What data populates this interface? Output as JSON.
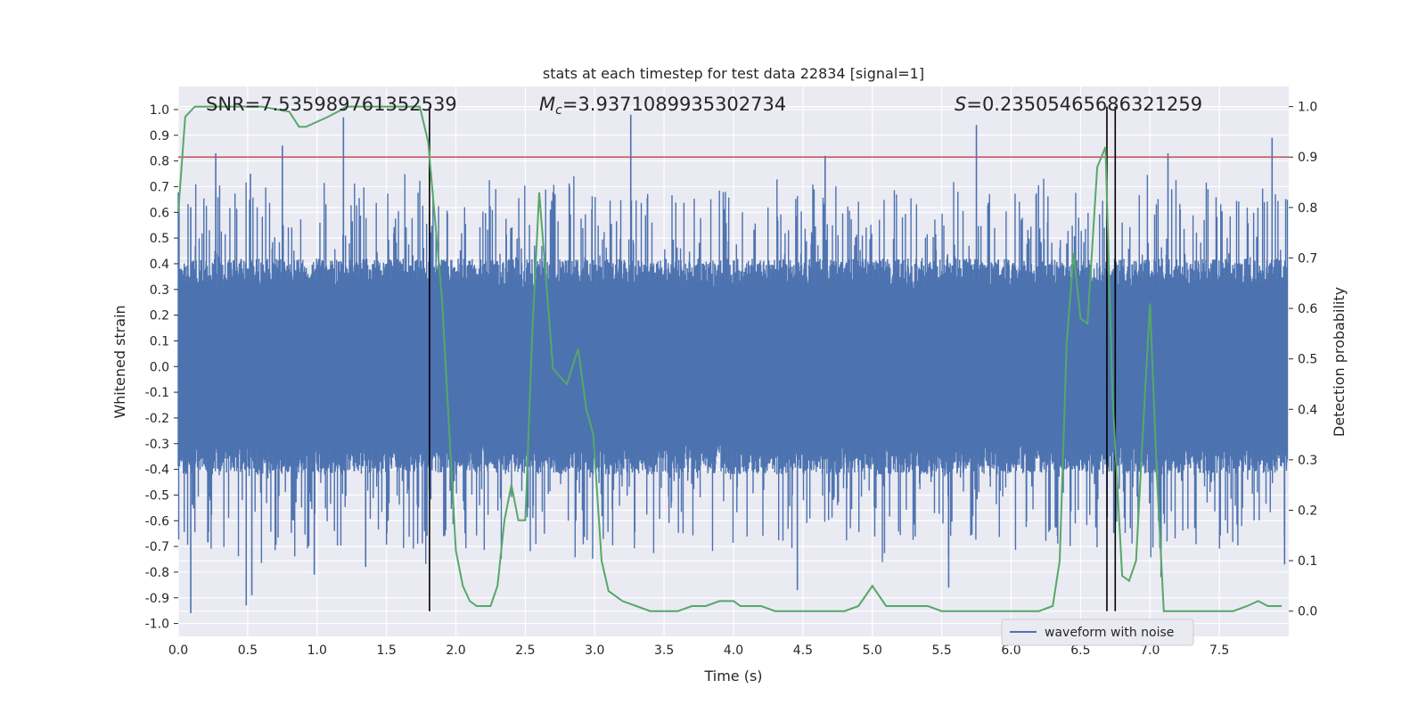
{
  "chart_data": {
    "type": "line",
    "title": "stats at each timestep for test data 22834 [signal=1]",
    "xlabel": "Time (s)",
    "ylabel_left": "Whitened strain",
    "ylabel_right": "Detection probability",
    "xlim": [
      0.0,
      8.0
    ],
    "ylim_left": [
      -1.05,
      1.09
    ],
    "ylim_right": [
      -0.05,
      1.04
    ],
    "x_ticks": [
      "0.0",
      "0.5",
      "1.0",
      "1.5",
      "2.0",
      "2.5",
      "3.0",
      "3.5",
      "4.0",
      "4.5",
      "5.0",
      "5.5",
      "6.0",
      "6.5",
      "7.0",
      "7.5"
    ],
    "y_ticks_left": [
      "1.0",
      "0.9",
      "0.8",
      "0.7",
      "0.6",
      "0.5",
      "0.4",
      "0.3",
      "0.2",
      "0.1",
      "0.0",
      "-0.1",
      "-0.2",
      "-0.3",
      "-0.4",
      "-0.5",
      "-0.6",
      "-0.7",
      "-0.8",
      "-0.9",
      "-1.0"
    ],
    "y_ticks_right": [
      "1.0",
      "0.9",
      "0.8",
      "0.7",
      "0.6",
      "0.5",
      "0.4",
      "0.3",
      "0.2",
      "0.1",
      "0.0"
    ],
    "grid": true,
    "legend_position": "bottom-right",
    "annotations": {
      "snr": "SNR=7.535989761352539",
      "mc_symbol": "M",
      "mc_sub": "c",
      "mc_value": "=3.9371089935302734",
      "s_symbol": "S",
      "s_value": "=0.23505465686321259"
    },
    "threshold_right": 0.9,
    "vertical_lines_x": [
      1.81,
      6.69,
      6.75
    ],
    "series": [
      {
        "name": "waveform with noise",
        "color": "#4c72b0",
        "style": "dense noise, amplitude mostly within ±0.4 with spikes up to ±1.0",
        "spike_peaks": [
          {
            "x": 0.09,
            "y": 0.62
          },
          {
            "x": 0.27,
            "y": 0.83
          },
          {
            "x": 0.52,
            "y": 0.75
          },
          {
            "x": 0.75,
            "y": 0.86
          },
          {
            "x": 1.19,
            "y": 0.97
          },
          {
            "x": 3.26,
            "y": 0.98
          },
          {
            "x": 4.66,
            "y": 0.82
          },
          {
            "x": 5.75,
            "y": 0.94
          },
          {
            "x": 7.13,
            "y": 0.83
          },
          {
            "x": 7.88,
            "y": 0.89
          }
        ],
        "spike_troughs": [
          {
            "x": 0.09,
            "y": -0.96
          },
          {
            "x": 0.49,
            "y": -0.93
          },
          {
            "x": 0.53,
            "y": -0.89
          },
          {
            "x": 0.98,
            "y": -0.81
          },
          {
            "x": 1.35,
            "y": -0.78
          },
          {
            "x": 4.46,
            "y": -0.87
          },
          {
            "x": 5.55,
            "y": -0.86
          },
          {
            "x": 7.08,
            "y": -0.82
          },
          {
            "x": 7.97,
            "y": -0.77
          }
        ]
      },
      {
        "name": "",
        "color": "#55a868",
        "axis": "right",
        "x": [
          0.0,
          0.05,
          0.12,
          0.2,
          0.4,
          0.6,
          0.8,
          0.87,
          0.92,
          1.0,
          1.08,
          1.15,
          1.21,
          1.27,
          1.3,
          1.4,
          1.6,
          1.74,
          1.8,
          1.9,
          2.0,
          2.05,
          2.1,
          2.15,
          2.2,
          2.25,
          2.3,
          2.35,
          2.4,
          2.45,
          2.5,
          2.55,
          2.6,
          2.7,
          2.8,
          2.88,
          2.94,
          2.99,
          3.05,
          3.1,
          3.2,
          3.3,
          3.4,
          3.5,
          3.6,
          3.7,
          3.8,
          3.9,
          4.0,
          4.05,
          4.1,
          4.2,
          4.3,
          4.4,
          4.5,
          4.6,
          4.7,
          4.8,
          4.9,
          5.0,
          5.1,
          5.2,
          5.3,
          5.4,
          5.5,
          5.6,
          5.7,
          5.8,
          5.9,
          6.0,
          6.1,
          6.2,
          6.3,
          6.35,
          6.4,
          6.45,
          6.5,
          6.55,
          6.62,
          6.68,
          6.73,
          6.8,
          6.85,
          6.9,
          6.95,
          7.0,
          7.05,
          7.1,
          7.15,
          7.2,
          7.3,
          7.4,
          7.5,
          7.6,
          7.7,
          7.78,
          7.85,
          7.9,
          7.95
        ],
        "y": [
          0.79,
          0.98,
          1.0,
          1.0,
          1.0,
          1.0,
          0.99,
          0.96,
          0.96,
          0.97,
          0.98,
          0.99,
          1.0,
          1.0,
          1.0,
          1.0,
          1.0,
          1.0,
          0.93,
          0.62,
          0.12,
          0.05,
          0.02,
          0.01,
          0.01,
          0.01,
          0.05,
          0.18,
          0.25,
          0.18,
          0.18,
          0.55,
          0.83,
          0.48,
          0.45,
          0.52,
          0.4,
          0.35,
          0.1,
          0.04,
          0.02,
          0.01,
          0.0,
          0.0,
          0.0,
          0.01,
          0.01,
          0.02,
          0.02,
          0.01,
          0.01,
          0.01,
          0.0,
          0.0,
          0.0,
          0.0,
          0.0,
          0.0,
          0.01,
          0.05,
          0.01,
          0.01,
          0.01,
          0.01,
          0.0,
          0.0,
          0.0,
          0.0,
          0.0,
          0.0,
          0.0,
          0.0,
          0.01,
          0.1,
          0.53,
          0.71,
          0.58,
          0.57,
          0.88,
          0.92,
          0.43,
          0.07,
          0.06,
          0.1,
          0.36,
          0.61,
          0.27,
          0.0,
          0.0,
          0.0,
          0.0,
          0.0,
          0.0,
          0.0,
          0.01,
          0.02,
          0.01,
          0.01,
          0.01
        ]
      }
    ]
  }
}
